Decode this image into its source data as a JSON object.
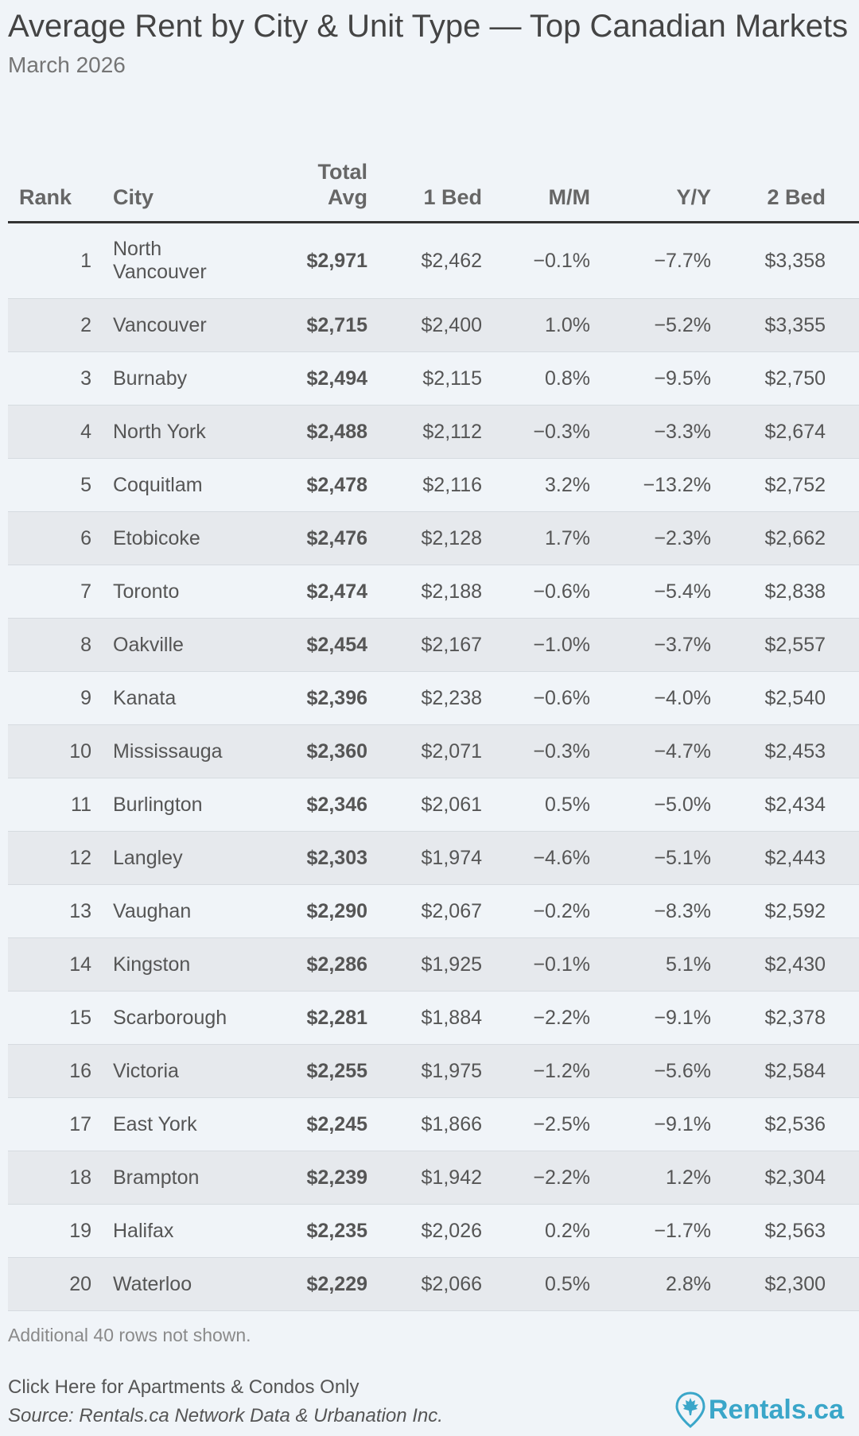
{
  "title": "Average Rent by City & Unit Type — Top Canadian Markets",
  "subtitle": "March 2026",
  "chart_data": {
    "type": "table",
    "title": "Average Rent by City & Unit Type — Top Canadian Markets",
    "subtitle": "March 2026",
    "columns": [
      "Rank",
      "City",
      "Total Avg",
      "1 Bed",
      "M/M",
      "Y/Y",
      "2 Bed"
    ],
    "rows": [
      [
        "1",
        "North Vancouver",
        "$2,971",
        "$2,462",
        "−0.1%",
        "−7.7%",
        "$3,358"
      ],
      [
        "2",
        "Vancouver",
        "$2,715",
        "$2,400",
        "1.0%",
        "−5.2%",
        "$3,355"
      ],
      [
        "3",
        "Burnaby",
        "$2,494",
        "$2,115",
        "0.8%",
        "−9.5%",
        "$2,750"
      ],
      [
        "4",
        "North York",
        "$2,488",
        "$2,112",
        "−0.3%",
        "−3.3%",
        "$2,674"
      ],
      [
        "5",
        "Coquitlam",
        "$2,478",
        "$2,116",
        "3.2%",
        "−13.2%",
        "$2,752"
      ],
      [
        "6",
        "Etobicoke",
        "$2,476",
        "$2,128",
        "1.7%",
        "−2.3%",
        "$2,662"
      ],
      [
        "7",
        "Toronto",
        "$2,474",
        "$2,188",
        "−0.6%",
        "−5.4%",
        "$2,838"
      ],
      [
        "8",
        "Oakville",
        "$2,454",
        "$2,167",
        "−1.0%",
        "−3.7%",
        "$2,557"
      ],
      [
        "9",
        "Kanata",
        "$2,396",
        "$2,238",
        "−0.6%",
        "−4.0%",
        "$2,540"
      ],
      [
        "10",
        "Mississauga",
        "$2,360",
        "$2,071",
        "−0.3%",
        "−4.7%",
        "$2,453"
      ],
      [
        "11",
        "Burlington",
        "$2,346",
        "$2,061",
        "0.5%",
        "−5.0%",
        "$2,434"
      ],
      [
        "12",
        "Langley",
        "$2,303",
        "$1,974",
        "−4.6%",
        "−5.1%",
        "$2,443"
      ],
      [
        "13",
        "Vaughan",
        "$2,290",
        "$2,067",
        "−0.2%",
        "−8.3%",
        "$2,592"
      ],
      [
        "14",
        "Kingston",
        "$2,286",
        "$1,925",
        "−0.1%",
        "5.1%",
        "$2,430"
      ],
      [
        "15",
        "Scarborough",
        "$2,281",
        "$1,884",
        "−2.2%",
        "−9.1%",
        "$2,378"
      ],
      [
        "16",
        "Victoria",
        "$2,255",
        "$1,975",
        "−1.2%",
        "−5.6%",
        "$2,584"
      ],
      [
        "17",
        "East York",
        "$2,245",
        "$1,866",
        "−2.5%",
        "−9.1%",
        "$2,536"
      ],
      [
        "18",
        "Brampton",
        "$2,239",
        "$1,942",
        "−2.2%",
        "1.2%",
        "$2,304"
      ],
      [
        "19",
        "Halifax",
        "$2,235",
        "$2,026",
        "0.2%",
        "−1.7%",
        "$2,563"
      ],
      [
        "20",
        "Waterloo",
        "$2,229",
        "$2,066",
        "0.5%",
        "2.8%",
        "$2,300"
      ]
    ]
  },
  "footer": {
    "note": "Additional 40 rows not shown.",
    "link": "Click Here for Apartments & Condos Only",
    "source": "Source: Rentals.ca Network Data & Urbanation Inc.",
    "logo_text": "Rentals.ca",
    "logo_color": "#3aa6c9"
  },
  "icons": {
    "logo": "maple-leaf-pin-icon"
  }
}
